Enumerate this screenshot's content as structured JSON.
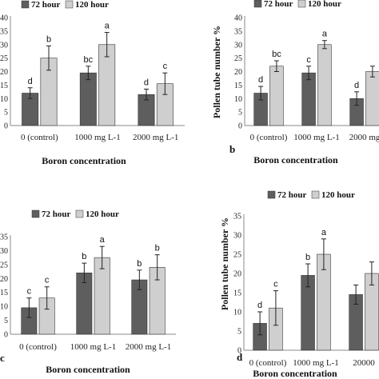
{
  "colors": {
    "series1": "#5e5e5e",
    "series2": "#cfcfcf",
    "axis": "#8a8a8a",
    "text": "#111111"
  },
  "chart_data": [
    {
      "type": "bar",
      "panel_label": "",
      "xlabel": "Boron concentration",
      "ylabel": "",
      "ylim": [
        0,
        40
      ],
      "yticks": [
        "0",
        "5",
        "10",
        "15",
        "20",
        "25",
        "30",
        "35",
        "40"
      ],
      "categories": [
        "0 (control)",
        "1000 mg L-1",
        "2000 mg L-1"
      ],
      "series": [
        {
          "name": "72 hour",
          "values": [
            12,
            19.5,
            11.5
          ],
          "errors": [
            2,
            2.5,
            2
          ],
          "labels": [
            "d",
            "bc",
            "d"
          ]
        },
        {
          "name": "120 hour",
          "values": [
            25,
            30,
            15.5
          ],
          "errors": [
            4.5,
            4.5,
            4
          ],
          "labels": [
            "b",
            "a",
            "c"
          ]
        }
      ]
    },
    {
      "type": "bar",
      "panel_label": "b",
      "xlabel": "Boron concentration",
      "ylabel": "Pollen tube number %",
      "ylim": [
        0,
        40
      ],
      "yticks": [
        "0",
        "5",
        "10",
        "15",
        "20",
        "25",
        "30",
        "35",
        "40"
      ],
      "categories": [
        "0 (control)",
        "1000 mg L-1",
        "2000 mg"
      ],
      "series": [
        {
          "name": "72 hour",
          "values": [
            12,
            19.5,
            10
          ],
          "errors": [
            2.5,
            2.5,
            2.5
          ],
          "labels": [
            "d",
            "c",
            "d"
          ]
        },
        {
          "name": "120 hour",
          "values": [
            22,
            30,
            20
          ],
          "errors": [
            2,
            1.5,
            2
          ],
          "labels": [
            "bc",
            "a",
            ""
          ]
        }
      ]
    },
    {
      "type": "bar",
      "panel_label": "c",
      "xlabel": "Boron concentration",
      "ylabel": "",
      "ylim": [
        0,
        35
      ],
      "yticks": [
        "0",
        "5",
        "10",
        "15",
        "20",
        "25",
        "30",
        "35"
      ],
      "categories": [
        "0 (control)",
        "1000 mg L-1",
        "2000 mg L-1"
      ],
      "series": [
        {
          "name": "72 hour",
          "values": [
            9.5,
            22,
            19.5
          ],
          "errors": [
            3.5,
            3.5,
            3.5
          ],
          "labels": [
            "c",
            "b",
            "b"
          ]
        },
        {
          "name": "120 hour",
          "values": [
            13,
            27.5,
            24
          ],
          "errors": [
            4,
            4,
            4.5
          ],
          "labels": [
            "c",
            "a",
            "b"
          ]
        }
      ]
    },
    {
      "type": "bar",
      "panel_label": "d",
      "xlabel": "Boron concentration",
      "ylabel": "Pollen tube number %",
      "ylim": [
        0,
        35
      ],
      "yticks": [
        "0",
        "5",
        "10",
        "15",
        "20",
        "25",
        "30",
        "35"
      ],
      "categories": [
        "0 (control)",
        "1000 mg L-1",
        "20000"
      ],
      "series": [
        {
          "name": "72 hour",
          "values": [
            7,
            19.5,
            14.5
          ],
          "errors": [
            3,
            3,
            2.5
          ],
          "labels": [
            "d",
            "b",
            ""
          ]
        },
        {
          "name": "120 hour",
          "values": [
            11,
            25,
            20
          ],
          "errors": [
            4.5,
            4,
            3
          ],
          "labels": [
            "c",
            "a",
            ""
          ]
        }
      ]
    }
  ]
}
